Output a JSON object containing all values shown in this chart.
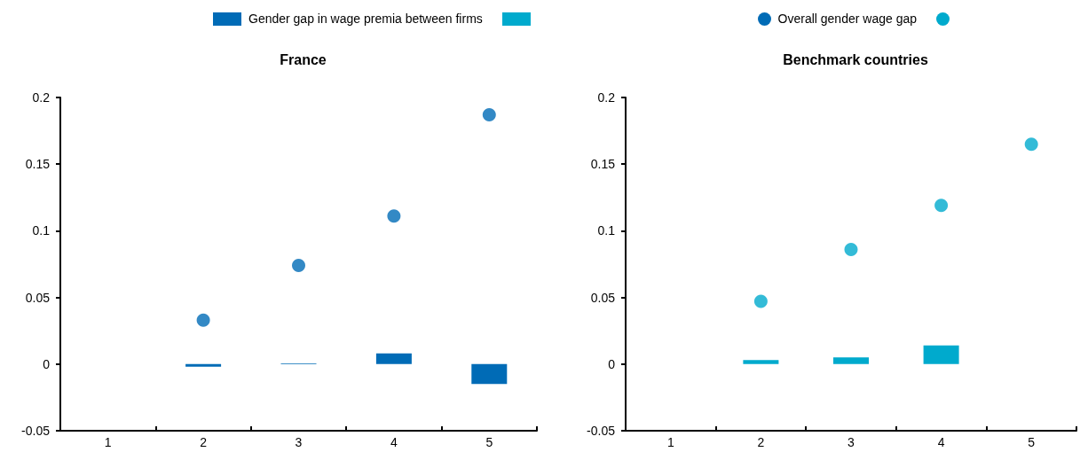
{
  "chart_data": [
    {
      "type": "bar",
      "title": "France",
      "categories": [
        "1",
        "2",
        "3",
        "4",
        "5"
      ],
      "series": [
        {
          "name": "Gender gap in wage premia between firms",
          "color": "#006bb6",
          "values": [
            null,
            -0.002,
            0.0005,
            0.008,
            -0.015
          ]
        },
        {
          "name": "Overall gender wage gap",
          "type": "scatter",
          "color": "#006bb6",
          "x": [
            "1",
            "2",
            "3",
            "4",
            "5"
          ],
          "values": [
            null,
            0.033,
            0.074,
            0.111,
            0.187
          ]
        }
      ],
      "ylim": [
        -0.05,
        0.2
      ],
      "yticks": [
        -0.05,
        0,
        0.05,
        0.1,
        0.15,
        0.2
      ],
      "grid": false,
      "legend": "top",
      "marker": "circle"
    },
    {
      "type": "bar",
      "title": "Benchmark countries",
      "categories": [
        "1",
        "2",
        "3",
        "4",
        "5"
      ],
      "series": [
        {
          "color": "#00aacd",
          "values": [
            null,
            0.003,
            0.005,
            0.014,
            null
          ]
        },
        {
          "type": "scatter",
          "color": "#00aacd",
          "x": [
            "1",
            "2",
            "3",
            "4",
            "5"
          ],
          "values": [
            null,
            0.047,
            0.086,
            0.119,
            0.165
          ]
        }
      ],
      "ylim": [
        -0.05,
        0.2
      ],
      "yticks": [
        -0.05,
        0,
        0.05,
        0.1,
        0.15,
        0.2
      ],
      "grid": false,
      "marker": "circle"
    }
  ]
}
